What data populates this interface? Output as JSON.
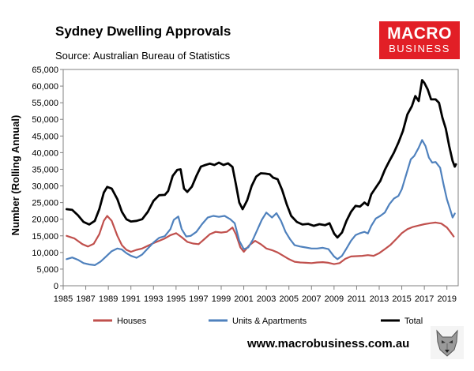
{
  "header": {
    "title": "Sydney Dwelling Approvals",
    "subtitle": "Source: Australian Bureau of Statistics"
  },
  "brand": {
    "logo_line1": "MACRO",
    "logo_line2": "BUSINESS",
    "url": "www.macrobusiness.com.au",
    "logo_color": "#e21f26"
  },
  "chart_data": {
    "type": "line",
    "title": "Sydney Dwelling Approvals",
    "xlabel": "",
    "ylabel": "Number (Rolling Annual)",
    "xlim": [
      1985,
      2020
    ],
    "ylim": [
      0,
      65000
    ],
    "yticks": [
      0,
      5000,
      10000,
      15000,
      20000,
      25000,
      30000,
      35000,
      40000,
      45000,
      50000,
      55000,
      60000,
      65000
    ],
    "ytick_labels": [
      "0",
      "5,000",
      "10,000",
      "15,000",
      "20,000",
      "25,000",
      "30,000",
      "35,000",
      "40,000",
      "45,000",
      "50,000",
      "55,000",
      "60,000",
      "65,000"
    ],
    "xticks": [
      1985,
      1987,
      1989,
      1991,
      1993,
      1995,
      1997,
      1999,
      2001,
      2003,
      2005,
      2007,
      2009,
      2011,
      2013,
      2015,
      2017,
      2019
    ],
    "xtick_labels": [
      "1985",
      "1987",
      "1989",
      "1991",
      "1993",
      "1995",
      "1997",
      "1999",
      "2001",
      "2003",
      "2005",
      "2007",
      "2009",
      "2011",
      "2013",
      "2015",
      "2017",
      "2019"
    ],
    "legend_position": "bottom",
    "series": [
      {
        "name": "Houses",
        "color": "#c0504d",
        "points": [
          [
            1985.3,
            15000
          ],
          [
            1986,
            14200
          ],
          [
            1986.7,
            12500
          ],
          [
            1987.2,
            11800
          ],
          [
            1987.7,
            12600
          ],
          [
            1988.2,
            15500
          ],
          [
            1988.6,
            19500
          ],
          [
            1988.9,
            21000
          ],
          [
            1989.3,
            19500
          ],
          [
            1989.8,
            15000
          ],
          [
            1990.2,
            12200
          ],
          [
            1990.6,
            10800
          ],
          [
            1991,
            10200
          ],
          [
            1991.5,
            10800
          ],
          [
            1992,
            11200
          ],
          [
            1992.5,
            12000
          ],
          [
            1993,
            12800
          ],
          [
            1993.5,
            13500
          ],
          [
            1994,
            14200
          ],
          [
            1994.5,
            15200
          ],
          [
            1995,
            15800
          ],
          [
            1995.5,
            14600
          ],
          [
            1996,
            13200
          ],
          [
            1996.5,
            12700
          ],
          [
            1997,
            12500
          ],
          [
            1997.5,
            14000
          ],
          [
            1998,
            15500
          ],
          [
            1998.5,
            16200
          ],
          [
            1999,
            16000
          ],
          [
            1999.5,
            16200
          ],
          [
            2000,
            17500
          ],
          [
            2000.3,
            15500
          ],
          [
            2000.7,
            11500
          ],
          [
            2001,
            10200
          ],
          [
            2001.5,
            12200
          ],
          [
            2002,
            13500
          ],
          [
            2002.5,
            12500
          ],
          [
            2003,
            11200
          ],
          [
            2003.5,
            10700
          ],
          [
            2004,
            10000
          ],
          [
            2004.5,
            9000
          ],
          [
            2005,
            8000
          ],
          [
            2005.5,
            7200
          ],
          [
            2006,
            7000
          ],
          [
            2006.5,
            6900
          ],
          [
            2007,
            6800
          ],
          [
            2007.5,
            7000
          ],
          [
            2008,
            7100
          ],
          [
            2008.5,
            6900
          ],
          [
            2009,
            6500
          ],
          [
            2009.5,
            6800
          ],
          [
            2010,
            8100
          ],
          [
            2010.5,
            8800
          ],
          [
            2011,
            8900
          ],
          [
            2011.5,
            9000
          ],
          [
            2012,
            9200
          ],
          [
            2012.5,
            9000
          ],
          [
            2013,
            9800
          ],
          [
            2013.5,
            11000
          ],
          [
            2014,
            12300
          ],
          [
            2014.5,
            14000
          ],
          [
            2015,
            15800
          ],
          [
            2015.5,
            17000
          ],
          [
            2016,
            17700
          ],
          [
            2016.5,
            18100
          ],
          [
            2017,
            18500
          ],
          [
            2017.5,
            18800
          ],
          [
            2018,
            19000
          ],
          [
            2018.5,
            18700
          ],
          [
            2019,
            17500
          ],
          [
            2019.3,
            16200
          ],
          [
            2019.6,
            14800
          ]
        ]
      },
      {
        "name": "Units & Apartments",
        "color": "#4f81bd",
        "points": [
          [
            1985.3,
            8000
          ],
          [
            1985.8,
            8500
          ],
          [
            1986.3,
            7800
          ],
          [
            1986.8,
            6800
          ],
          [
            1987.3,
            6400
          ],
          [
            1987.8,
            6200
          ],
          [
            1988.3,
            7200
          ],
          [
            1988.8,
            8800
          ],
          [
            1989.3,
            10400
          ],
          [
            1989.8,
            11200
          ],
          [
            1990.2,
            10900
          ],
          [
            1990.6,
            9800
          ],
          [
            1991,
            9000
          ],
          [
            1991.5,
            8400
          ],
          [
            1992,
            9400
          ],
          [
            1992.5,
            11200
          ],
          [
            1993,
            13000
          ],
          [
            1993.5,
            14400
          ],
          [
            1994,
            14900
          ],
          [
            1994.5,
            17000
          ],
          [
            1994.8,
            19800
          ],
          [
            1995.2,
            20800
          ],
          [
            1995.5,
            17000
          ],
          [
            1995.9,
            14800
          ],
          [
            1996.3,
            15000
          ],
          [
            1996.8,
            16200
          ],
          [
            1997.3,
            18500
          ],
          [
            1997.8,
            20500
          ],
          [
            1998.3,
            21000
          ],
          [
            1998.8,
            20700
          ],
          [
            1999.3,
            21000
          ],
          [
            1999.8,
            20000
          ],
          [
            2000.2,
            18800
          ],
          [
            2000.6,
            13500
          ],
          [
            2001,
            11000
          ],
          [
            2001.4,
            11500
          ],
          [
            2001.8,
            13800
          ],
          [
            2002.2,
            16800
          ],
          [
            2002.6,
            19800
          ],
          [
            2003,
            22000
          ],
          [
            2003.5,
            20500
          ],
          [
            2003.9,
            21800
          ],
          [
            2004.3,
            19500
          ],
          [
            2004.7,
            16200
          ],
          [
            2005.1,
            14000
          ],
          [
            2005.5,
            12200
          ],
          [
            2006,
            11800
          ],
          [
            2006.5,
            11500
          ],
          [
            2007,
            11200
          ],
          [
            2007.5,
            11200
          ],
          [
            2008,
            11400
          ],
          [
            2008.5,
            11000
          ],
          [
            2009,
            8800
          ],
          [
            2009.3,
            8000
          ],
          [
            2009.7,
            9000
          ],
          [
            2010.1,
            11200
          ],
          [
            2010.5,
            13500
          ],
          [
            2010.9,
            15200
          ],
          [
            2011.3,
            15800
          ],
          [
            2011.7,
            16200
          ],
          [
            2012,
            15700
          ],
          [
            2012.3,
            18000
          ],
          [
            2012.7,
            20200
          ],
          [
            2013.1,
            21000
          ],
          [
            2013.5,
            22000
          ],
          [
            2013.9,
            24500
          ],
          [
            2014.3,
            26200
          ],
          [
            2014.7,
            27000
          ],
          [
            2015,
            29000
          ],
          [
            2015.4,
            33500
          ],
          [
            2015.8,
            38000
          ],
          [
            2016.1,
            39000
          ],
          [
            2016.5,
            41500
          ],
          [
            2016.8,
            43800
          ],
          [
            2017.1,
            42000
          ],
          [
            2017.4,
            38500
          ],
          [
            2017.7,
            37000
          ],
          [
            2018,
            37200
          ],
          [
            2018.4,
            35500
          ],
          [
            2018.7,
            30500
          ],
          [
            2019,
            26000
          ],
          [
            2019.3,
            22800
          ],
          [
            2019.5,
            20500
          ],
          [
            2019.7,
            21700
          ]
        ]
      },
      {
        "name": "Total",
        "color": "#000000",
        "points": [
          [
            1985.3,
            23000
          ],
          [
            1985.8,
            22800
          ],
          [
            1986.3,
            21200
          ],
          [
            1986.8,
            19200
          ],
          [
            1987.3,
            18400
          ],
          [
            1987.8,
            19500
          ],
          [
            1988.2,
            23000
          ],
          [
            1988.6,
            28000
          ],
          [
            1988.9,
            29700
          ],
          [
            1989.3,
            29200
          ],
          [
            1989.8,
            26000
          ],
          [
            1990.2,
            22200
          ],
          [
            1990.6,
            20000
          ],
          [
            1991,
            19300
          ],
          [
            1991.5,
            19500
          ],
          [
            1992,
            20000
          ],
          [
            1992.5,
            22200
          ],
          [
            1993,
            25500
          ],
          [
            1993.5,
            27200
          ],
          [
            1994,
            27300
          ],
          [
            1994.3,
            28500
          ],
          [
            1994.7,
            33000
          ],
          [
            1995.1,
            34800
          ],
          [
            1995.4,
            35000
          ],
          [
            1995.7,
            29200
          ],
          [
            1996,
            28200
          ],
          [
            1996.4,
            29800
          ],
          [
            1996.8,
            33000
          ],
          [
            1997.2,
            35800
          ],
          [
            1997.6,
            36300
          ],
          [
            1998,
            36700
          ],
          [
            1998.4,
            36300
          ],
          [
            1998.8,
            37000
          ],
          [
            1999.2,
            36300
          ],
          [
            1999.6,
            36800
          ],
          [
            2000,
            35700
          ],
          [
            2000.3,
            30500
          ],
          [
            2000.6,
            25000
          ],
          [
            2000.9,
            23000
          ],
          [
            2001.3,
            25700
          ],
          [
            2001.7,
            30000
          ],
          [
            2002.1,
            32800
          ],
          [
            2002.5,
            33800
          ],
          [
            2002.9,
            33700
          ],
          [
            2003.3,
            33500
          ],
          [
            2003.6,
            32500
          ],
          [
            2004,
            32000
          ],
          [
            2004.4,
            28800
          ],
          [
            2004.8,
            24500
          ],
          [
            2005.2,
            21000
          ],
          [
            2005.7,
            19200
          ],
          [
            2006.2,
            18400
          ],
          [
            2006.7,
            18600
          ],
          [
            2007.2,
            18000
          ],
          [
            2007.7,
            18500
          ],
          [
            2008.2,
            18200
          ],
          [
            2008.6,
            18800
          ],
          [
            2009,
            15700
          ],
          [
            2009.3,
            14500
          ],
          [
            2009.7,
            16000
          ],
          [
            2010.1,
            19500
          ],
          [
            2010.5,
            22200
          ],
          [
            2010.9,
            24000
          ],
          [
            2011.3,
            23800
          ],
          [
            2011.7,
            25000
          ],
          [
            2012,
            24200
          ],
          [
            2012.3,
            27500
          ],
          [
            2012.7,
            29500
          ],
          [
            2013.1,
            31500
          ],
          [
            2013.5,
            34800
          ],
          [
            2013.9,
            37500
          ],
          [
            2014.3,
            40000
          ],
          [
            2014.7,
            43000
          ],
          [
            2015.1,
            46500
          ],
          [
            2015.5,
            51500
          ],
          [
            2015.9,
            54000
          ],
          [
            2016.2,
            57000
          ],
          [
            2016.5,
            55500
          ],
          [
            2016.8,
            61800
          ],
          [
            2017,
            61000
          ],
          [
            2017.3,
            59000
          ],
          [
            2017.6,
            56000
          ],
          [
            2018,
            56000
          ],
          [
            2018.3,
            55000
          ],
          [
            2018.6,
            50500
          ],
          [
            2018.9,
            47200
          ],
          [
            2019.2,
            42000
          ],
          [
            2019.5,
            37500
          ],
          [
            2019.7,
            35800
          ],
          [
            2019.8,
            36500
          ]
        ]
      }
    ]
  }
}
